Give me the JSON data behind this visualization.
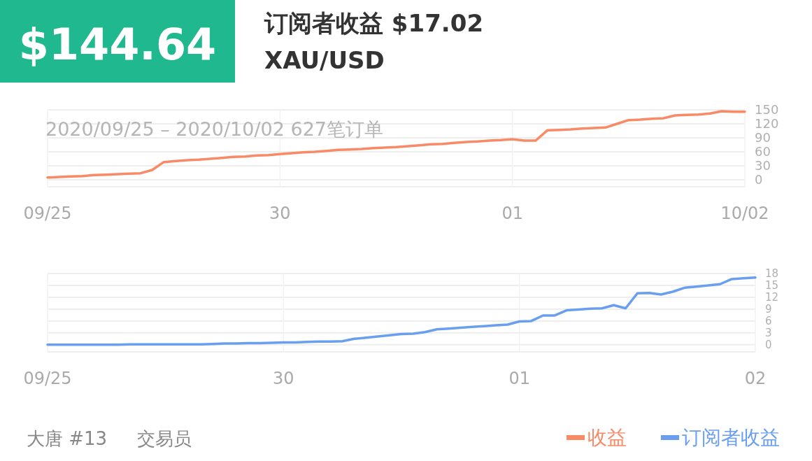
{
  "chart_data": [
    {
      "type": "line",
      "subtitle": "2020/09/25 – 2020/10/02  627笔订单",
      "annotations": [
        "$144.64",
        "订阅者收益 $17.02",
        "XAU/USD"
      ],
      "categories": [
        "09/25",
        null,
        null,
        null,
        null,
        null,
        null,
        null,
        null,
        null,
        null,
        null,
        null,
        null,
        null,
        null,
        null,
        null,
        null,
        null,
        "30",
        null,
        null,
        null,
        null,
        null,
        null,
        null,
        null,
        null,
        null,
        null,
        null,
        null,
        null,
        null,
        null,
        null,
        null,
        null,
        "01",
        null,
        null,
        null,
        null,
        null,
        null,
        null,
        null,
        null,
        null,
        null,
        null,
        null,
        null,
        null,
        null,
        null,
        null,
        null,
        "10/02"
      ],
      "ylim": [
        -15,
        150
      ],
      "yticks": [
        0,
        30,
        60,
        90,
        120,
        150
      ],
      "grid": true,
      "legend": "bottom right",
      "series": [
        {
          "name": "收益",
          "color": "#f88a67",
          "values": [
            5,
            6,
            7,
            8,
            10,
            11,
            12,
            13,
            14,
            21,
            38,
            40,
            42,
            43,
            45,
            47,
            49,
            50,
            52,
            53,
            55,
            57,
            59,
            60,
            62,
            64,
            65,
            66,
            68,
            69,
            70,
            72,
            74,
            76,
            77,
            79,
            81,
            82,
            84,
            85,
            87,
            84,
            84,
            106,
            107,
            108,
            110,
            111,
            112,
            120,
            128,
            129,
            131,
            132,
            138,
            139,
            140,
            142,
            147,
            146,
            146
          ]
        }
      ]
    },
    {
      "type": "line",
      "annotations": [
        "大唐 #13",
        "交易员"
      ],
      "categories": [
        "09/25",
        null,
        null,
        null,
        null,
        null,
        null,
        null,
        null,
        null,
        null,
        null,
        null,
        null,
        null,
        null,
        null,
        null,
        null,
        null,
        "30",
        null,
        null,
        null,
        null,
        null,
        null,
        null,
        null,
        null,
        null,
        null,
        null,
        null,
        null,
        null,
        null,
        null,
        null,
        null,
        "01",
        null,
        null,
        null,
        null,
        null,
        null,
        null,
        null,
        null,
        null,
        null,
        null,
        null,
        null,
        null,
        null,
        null,
        null,
        null,
        "02"
      ],
      "ylim": [
        -1.8,
        18
      ],
      "yticks": [
        0,
        3,
        6,
        9,
        12,
        15,
        18
      ],
      "grid": true,
      "legend": "bottom right",
      "series": [
        {
          "name": "订阅者收益",
          "color": "#6a9ff0",
          "values": [
            0,
            0,
            0,
            0,
            0,
            0,
            0,
            0.1,
            0.1,
            0.1,
            0.1,
            0.1,
            0.1,
            0.1,
            0.2,
            0.3,
            0.3,
            0.4,
            0.4,
            0.5,
            0.6,
            0.6,
            0.7,
            0.8,
            0.8,
            0.9,
            1.5,
            1.8,
            2.1,
            2.4,
            2.7,
            2.8,
            3.2,
            3.9,
            4.1,
            4.3,
            4.5,
            4.7,
            4.9,
            5.1,
            5.9,
            6.0,
            7.4,
            7.4,
            8.7,
            8.9,
            9.1,
            9.2,
            10.0,
            9.2,
            13.0,
            13.1,
            12.7,
            13.4,
            14.4,
            14.7,
            15.0,
            15.3,
            16.6,
            16.8,
            17.0
          ]
        }
      ]
    }
  ]
}
